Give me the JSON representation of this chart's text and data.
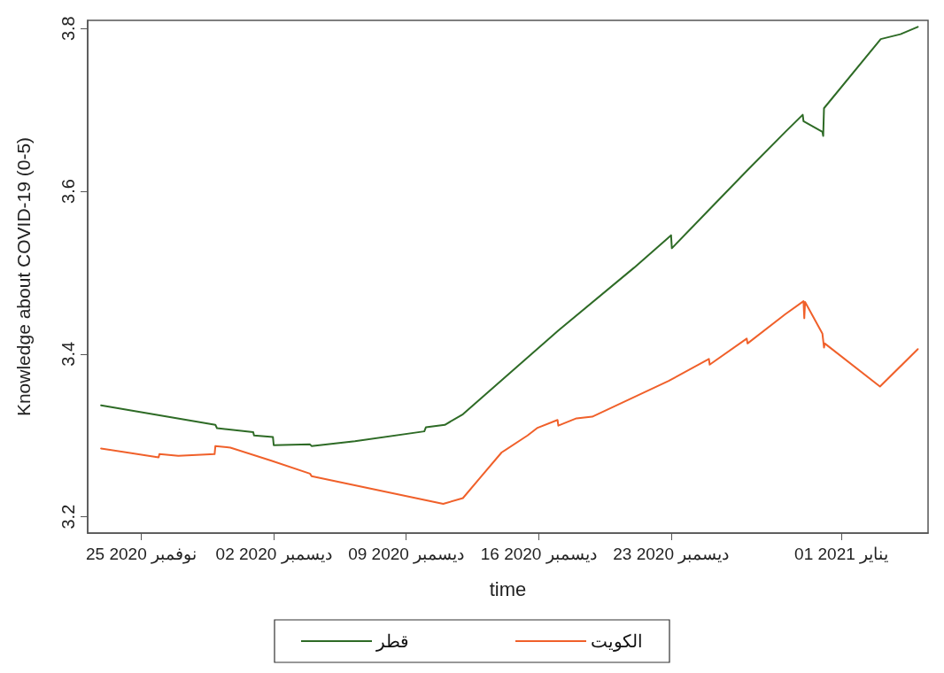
{
  "chart_data": {
    "type": "line",
    "xlabel": "time",
    "ylabel": "Knowledge about COVID-19 (0-5)",
    "xlim": [
      "2020-11-22T04:00",
      "2021-01-05T14:00"
    ],
    "xticks": [
      {
        "value": "2020-11-25",
        "label": "25 نوفمبر 2020"
      },
      {
        "value": "2020-12-02",
        "label": "02 ديسمبر 2020"
      },
      {
        "value": "2020-12-09",
        "label": "09 ديسمبر 2020"
      },
      {
        "value": "2020-12-16",
        "label": "16 ديسمبر 2020"
      },
      {
        "value": "2020-12-23",
        "label": "23 ديسمبر 2020"
      },
      {
        "value": "2021-01-01",
        "label": "01 يناير 2021"
      }
    ],
    "ylim": [
      3.18,
      3.81
    ],
    "yticks": [
      3.2,
      3.4,
      3.6,
      3.8
    ],
    "grid": false,
    "legend": "bottom",
    "marker": "none",
    "line_style": "solid",
    "series": [
      {
        "name": "قطر",
        "color": "#2e6b26",
        "x": [
          "2020-11-22T21:00",
          "2020-11-28T22:00",
          "2020-11-29T00:00",
          "2020-11-30T22:00",
          "2020-11-30T23:00",
          "2020-12-01T23:00",
          "2020-12-02T00:00",
          "2020-12-03T22:00",
          "2020-12-04T00:00",
          "2020-12-06T07:00",
          "2020-12-09T23:00",
          "2020-12-10T01:00",
          "2020-12-11T01:00",
          "2020-12-12T00:00",
          "2020-12-17T01:00",
          "2020-12-21T01:00",
          "2020-12-23T00:00",
          "2020-12-23T01:00",
          "2020-12-24T01:00",
          "2020-12-24T23:00",
          "2020-12-27T00:00",
          "2020-12-29T01:00",
          "2020-12-29T23:00",
          "2020-12-30T00:00",
          "2020-12-31T00:00",
          "2020-12-31T01:00",
          "2020-12-31T02:00",
          "2021-01-03T02:00",
          "2021-01-04T03:00",
          "2021-01-05T01:00"
        ],
        "values": [
          3.337,
          3.313,
          3.309,
          3.304,
          3.3,
          3.298,
          3.288,
          3.289,
          3.287,
          3.293,
          3.305,
          3.31,
          3.313,
          3.326,
          3.429,
          3.506,
          3.546,
          3.53,
          3.554,
          3.576,
          3.625,
          3.673,
          3.694,
          3.686,
          3.673,
          3.668,
          3.702,
          3.787,
          3.793,
          3.802
        ]
      },
      {
        "name": "الكويت",
        "color": "#f0602a",
        "x": [
          "2020-11-22T21:00",
          "2020-11-25T22:00",
          "2020-11-25T23:00",
          "2020-11-26T23:00",
          "2020-11-28T21:00",
          "2020-11-28T22:00",
          "2020-11-29T17:00",
          "2020-12-01T21:00",
          "2020-12-03T22:00",
          "2020-12-04T00:00",
          "2020-12-10T23:00",
          "2020-12-12T00:00",
          "2020-12-12T21:00",
          "2020-12-14T01:00",
          "2020-12-15T10:00",
          "2020-12-15T22:00",
          "2020-12-17T00:00",
          "2020-12-17T01:00",
          "2020-12-18T00:00",
          "2020-12-18T20:00",
          "2020-12-22T21:00",
          "2020-12-25T00:00",
          "2020-12-25T01:00",
          "2020-12-27T00:00",
          "2020-12-27T01:00",
          "2020-12-29T01:00",
          "2020-12-30T00:00",
          "2020-12-30T01:00",
          "2020-12-30T02:00",
          "2020-12-31T00:00",
          "2020-12-31T02:00",
          "2020-12-31T03:00",
          "2021-01-03T01:00",
          "2021-01-05T01:00"
        ],
        "values": [
          3.284,
          3.273,
          3.277,
          3.275,
          3.277,
          3.287,
          3.285,
          3.269,
          3.253,
          3.25,
          3.216,
          3.223,
          3.247,
          3.279,
          3.3,
          3.309,
          3.319,
          3.312,
          3.321,
          3.323,
          3.367,
          3.394,
          3.387,
          3.419,
          3.413,
          3.449,
          3.465,
          3.444,
          3.464,
          3.425,
          3.408,
          3.413,
          3.36,
          3.406
        ]
      }
    ]
  }
}
